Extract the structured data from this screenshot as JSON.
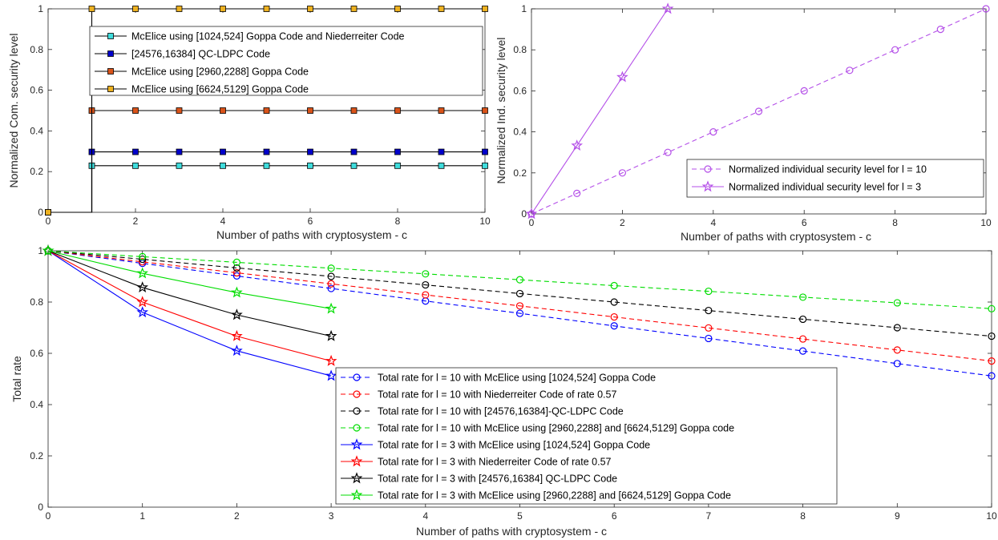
{
  "chart_data": [
    {
      "type": "line",
      "xlabel": "Number of paths with cryptosystem - c",
      "ylabel": "Normalized Com. security level",
      "xlim": [
        0,
        10
      ],
      "ylim": [
        0,
        1
      ],
      "xticks": [
        "0",
        "2",
        "4",
        "6",
        "8",
        "10"
      ],
      "yticks": [
        "0",
        "0.2",
        "0.4",
        "0.6",
        "0.8",
        "1"
      ],
      "legend_position": "top-right",
      "series": [
        {
          "name": "McElice using [1024,524] Goppa Code and Niederreiter Code",
          "color": "#3fdcdc",
          "marker": "square",
          "values": [
            0,
            0.229,
            0.229,
            0.229,
            0.229,
            0.229,
            0.229,
            0.229,
            0.229,
            0.229,
            0.229
          ]
        },
        {
          "name": " [24576,16384] QC-LDPC Code",
          "color": "#0000cc",
          "marker": "square",
          "values": [
            0,
            0.297,
            0.297,
            0.297,
            0.297,
            0.297,
            0.297,
            0.297,
            0.297,
            0.297,
            0.297
          ]
        },
        {
          "name": "McElice using [2960,2288] Goppa Code",
          "color": "#d95319",
          "marker": "square",
          "values": [
            0,
            0.5,
            0.5,
            0.5,
            0.5,
            0.5,
            0.5,
            0.5,
            0.5,
            0.5,
            0.5
          ]
        },
        {
          "name": "McElice using [6624,5129] Goppa Code",
          "color": "#edb120",
          "marker": "square",
          "values": [
            0,
            1,
            1,
            1,
            1,
            1,
            1,
            1,
            1,
            1,
            1
          ]
        }
      ]
    },
    {
      "type": "line",
      "xlabel": "Number of paths with cryptosystem - c",
      "ylabel": "Normalized Ind. security level",
      "xlim": [
        0,
        10
      ],
      "ylim": [
        0,
        1
      ],
      "xticks": [
        "0",
        "2",
        "4",
        "6",
        "8",
        "10"
      ],
      "yticks": [
        "0",
        "0.2",
        "0.4",
        "0.6",
        "0.8",
        "1"
      ],
      "legend_position": "bottom-right",
      "series": [
        {
          "name": "Normalized individual security level for l = 10",
          "color": "#b44fe8",
          "marker": "circle",
          "dash": true,
          "x": [
            0,
            1,
            2,
            3,
            4,
            5,
            6,
            7,
            8,
            9,
            10
          ],
          "values": [
            0,
            0.1,
            0.2,
            0.3,
            0.4,
            0.5,
            0.6,
            0.7,
            0.8,
            0.9,
            1.0
          ]
        },
        {
          "name": "Normalized individual security level for l = 3",
          "color": "#b44fe8",
          "marker": "star",
          "dash": false,
          "x": [
            0,
            1,
            2,
            3
          ],
          "values": [
            0,
            0.333,
            0.667,
            1.0
          ]
        }
      ]
    },
    {
      "type": "line",
      "xlabel": "Number of paths with cryptosystem - c",
      "ylabel": "Total rate",
      "xlim": [
        0,
        10
      ],
      "ylim": [
        0,
        1
      ],
      "xticks": [
        "0",
        "1",
        "2",
        "3",
        "4",
        "5",
        "6",
        "7",
        "8",
        "9",
        "10"
      ],
      "yticks": [
        "0",
        "0.2",
        "0.4",
        "0.6",
        "0.8",
        "1"
      ],
      "legend_position": "bottom-center",
      "series": [
        {
          "name": "Total rate for l = 10 with McElice using [1024,524] Goppa Code",
          "color": "#0000ff",
          "marker": "circle",
          "dash": true,
          "x": [
            0,
            1,
            2,
            3,
            4,
            5,
            6,
            7,
            8,
            9,
            10
          ],
          "values": [
            1.0,
            0.951,
            0.902,
            0.853,
            0.804,
            0.756,
            0.707,
            0.658,
            0.609,
            0.56,
            0.512
          ]
        },
        {
          "name": "Total rate for l = 10 with Niederreiter Code of rate 0.57",
          "color": "#ff0000",
          "marker": "circle",
          "dash": true,
          "x": [
            0,
            1,
            2,
            3,
            4,
            5,
            6,
            7,
            8,
            9,
            10
          ],
          "values": [
            1.0,
            0.957,
            0.914,
            0.871,
            0.828,
            0.785,
            0.742,
            0.699,
            0.656,
            0.613,
            0.57
          ]
        },
        {
          "name": "Total rate for l = 10 with [24576,16384]-QC-LDPC Code",
          "color": "#000000",
          "marker": "circle",
          "dash": true,
          "x": [
            0,
            1,
            2,
            3,
            4,
            5,
            6,
            7,
            8,
            9,
            10
          ],
          "values": [
            1.0,
            0.967,
            0.933,
            0.9,
            0.867,
            0.833,
            0.8,
            0.767,
            0.733,
            0.7,
            0.667
          ]
        },
        {
          "name": "Total rate  for l = 10 with McElice using [2960,2288] and [6624,5129] Goppa code",
          "color": "#00dd00",
          "marker": "circle",
          "dash": true,
          "x": [
            0,
            1,
            2,
            3,
            4,
            5,
            6,
            7,
            8,
            9,
            10
          ],
          "values": [
            1.0,
            0.977,
            0.955,
            0.932,
            0.91,
            0.887,
            0.864,
            0.842,
            0.819,
            0.797,
            0.774
          ]
        },
        {
          "name": "Total rate for l = 3 with McElice using [1024,524] Goppa Code",
          "color": "#0000ff",
          "marker": "star",
          "dash": false,
          "x": [
            0,
            1,
            2,
            3
          ],
          "values": [
            1.0,
            0.76,
            0.61,
            0.512
          ]
        },
        {
          "name": "Total rate for l = 3 with Niederreiter Code of rate 0.57",
          "color": "#ff0000",
          "marker": "star",
          "dash": false,
          "x": [
            0,
            1,
            2,
            3
          ],
          "values": [
            1.0,
            0.8,
            0.667,
            0.57
          ]
        },
        {
          "name": "Total rate for l = 3 with [24576,16384] QC-LDPC Code",
          "color": "#000000",
          "marker": "star",
          "dash": false,
          "x": [
            0,
            1,
            2,
            3
          ],
          "values": [
            1.0,
            0.857,
            0.75,
            0.667
          ]
        },
        {
          "name": "Total rate  for l = 3 with McElice using [2960,2288] and [6624,5129] Goppa Code",
          "color": "#00dd00",
          "marker": "star",
          "dash": false,
          "x": [
            0,
            1,
            2,
            3
          ],
          "values": [
            1.0,
            0.912,
            0.837,
            0.774
          ]
        }
      ]
    }
  ]
}
